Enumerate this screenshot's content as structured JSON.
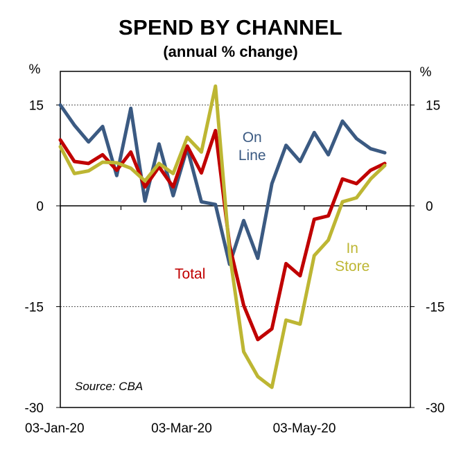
{
  "chart_data": {
    "type": "line",
    "title": "SPEND BY CHANNEL",
    "subtitle": "(annual % change)",
    "y_unit_left": "%",
    "y_unit_right": "%",
    "ylim": [
      -30,
      20
    ],
    "yticks": [
      15,
      0,
      -15,
      -30
    ],
    "ytick_labels": [
      "15",
      "0",
      "-15",
      "-30"
    ],
    "gridlines": [
      15,
      -15
    ],
    "x_tick_labels": [
      "03-Jan-20",
      "03-Mar-20",
      "03-May-20"
    ],
    "x_tick_weeks": [
      0,
      8.6,
      17.3
    ],
    "x_week_range": [
      0,
      23
    ],
    "source": "Source: CBA",
    "colors": {
      "On Line": "#3b5a82",
      "Total": "#c00000",
      "In Store": "#bdb633"
    },
    "series": [
      {
        "name": "On Line",
        "label_lines": [
          "On",
          "Line"
        ],
        "label_anchor": [
          13.6,
          9.5
        ],
        "values": [
          15,
          12,
          9.5,
          11.8,
          4.5,
          14.5,
          0.7,
          9.2,
          1.5,
          8.6,
          0.6,
          0.2,
          -8.7,
          -2.2,
          -7.8,
          3.3,
          9,
          6.6,
          10.9,
          7.6,
          12.6,
          10,
          8.5,
          7.9
        ]
      },
      {
        "name": "Total",
        "label_lines": [
          "Total"
        ],
        "label_anchor": [
          9.2,
          -10.8
        ],
        "values": [
          9.8,
          6.6,
          6.3,
          7.6,
          5.3,
          8,
          2.8,
          5.8,
          2.8,
          8.9,
          4.9,
          11.2,
          -5.9,
          -14.8,
          -19.9,
          -18.3,
          -8.6,
          -10.4,
          -2,
          -1.5,
          4,
          3.3,
          5.3,
          6.3
        ]
      },
      {
        "name": "In Store",
        "label_lines": [
          "In",
          "Store"
        ],
        "label_anchor": [
          20.7,
          -7
        ],
        "values": [
          8.8,
          4.8,
          5.2,
          6.5,
          6.4,
          5.6,
          3.7,
          6.3,
          4.8,
          10.2,
          8,
          17.8,
          -7.1,
          -21.7,
          -25.4,
          -27,
          -17,
          -17.6,
          -7.4,
          -5.1,
          0.6,
          1.2,
          4,
          6
        ]
      }
    ]
  }
}
